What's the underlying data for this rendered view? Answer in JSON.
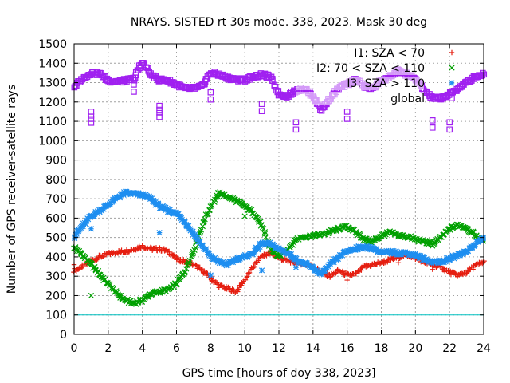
{
  "chart_data": {
    "type": "scatter",
    "title": "NRAYS. SISTED rt 30s mode. 338, 2023. Mask 30 deg",
    "xlabel": "GPS time [hours of doy 338, 2023]",
    "ylabel": "Number of GPS receiver-satellite rays",
    "xlim": [
      0,
      24
    ],
    "ylim": [
      0,
      1500
    ],
    "x_ticks": [
      "0",
      "2",
      "4",
      "6",
      "8",
      "10",
      "12",
      "14",
      "16",
      "18",
      "20",
      "22",
      "24"
    ],
    "y_ticks": [
      "0",
      "100",
      "200",
      "300",
      "400",
      "500",
      "600",
      "700",
      "800",
      "900",
      "1000",
      "1100",
      "1200",
      "1300",
      "1400",
      "1500"
    ],
    "grid": true,
    "legend_position": "top-right",
    "threshold_line": {
      "y": 100,
      "color": "#00c0c0"
    },
    "series": [
      {
        "name": "I1: SZA < 70",
        "marker": "+",
        "color": "#e51e10",
        "points": [
          [
            0,
            330
          ],
          [
            0.5,
            350
          ],
          [
            1,
            380
          ],
          [
            1.5,
            400
          ],
          [
            2,
            415
          ],
          [
            2.5,
            425
          ],
          [
            3,
            430
          ],
          [
            3.5,
            440
          ],
          [
            4,
            455
          ],
          [
            4.5,
            440
          ],
          [
            5,
            440
          ],
          [
            5.5,
            430
          ],
          [
            6,
            390
          ],
          [
            6.5,
            375
          ],
          [
            7,
            360
          ],
          [
            7.5,
            330
          ],
          [
            8,
            290
          ],
          [
            8.5,
            250
          ],
          [
            9,
            235
          ],
          [
            9.5,
            220
          ],
          [
            10,
            280
          ],
          [
            10.5,
            350
          ],
          [
            11,
            405
          ],
          [
            11.5,
            420
          ],
          [
            12,
            395
          ],
          [
            12.5,
            380
          ],
          [
            13,
            370
          ],
          [
            13.5,
            365
          ],
          [
            14,
            350
          ],
          [
            14.5,
            320
          ],
          [
            15,
            300
          ],
          [
            15.5,
            330
          ],
          [
            16,
            305
          ],
          [
            16.5,
            310
          ],
          [
            17,
            350
          ],
          [
            17.5,
            360
          ],
          [
            18,
            370
          ],
          [
            18.5,
            385
          ],
          [
            19,
            400
          ],
          [
            19.5,
            410
          ],
          [
            20,
            395
          ],
          [
            20.5,
            375
          ],
          [
            21,
            360
          ],
          [
            21.5,
            345
          ],
          [
            22,
            320
          ],
          [
            22.5,
            305
          ],
          [
            23,
            320
          ],
          [
            23.5,
            355
          ],
          [
            24,
            375
          ]
        ]
      },
      {
        "name": "I2: 70 < SZA < 110",
        "marker": "x",
        "color": "#00a000",
        "points": [
          [
            0,
            450
          ],
          [
            0.5,
            410
          ],
          [
            1,
            360
          ],
          [
            1.5,
            310
          ],
          [
            2,
            260
          ],
          [
            2.5,
            210
          ],
          [
            3,
            175
          ],
          [
            3.5,
            160
          ],
          [
            4,
            175
          ],
          [
            4.5,
            210
          ],
          [
            5,
            220
          ],
          [
            5.5,
            230
          ],
          [
            6,
            260
          ],
          [
            6.5,
            330
          ],
          [
            7,
            430
          ],
          [
            7.5,
            560
          ],
          [
            8,
            660
          ],
          [
            8.5,
            730
          ],
          [
            9,
            710
          ],
          [
            9.5,
            690
          ],
          [
            10,
            660
          ],
          [
            10.5,
            630
          ],
          [
            11,
            560
          ],
          [
            11.5,
            440
          ],
          [
            12,
            400
          ],
          [
            12.5,
            440
          ],
          [
            13,
            490
          ],
          [
            13.5,
            505
          ],
          [
            14,
            510
          ],
          [
            14.5,
            515
          ],
          [
            15,
            530
          ],
          [
            15.5,
            545
          ],
          [
            16,
            555
          ],
          [
            16.5,
            530
          ],
          [
            17,
            490
          ],
          [
            17.5,
            480
          ],
          [
            18,
            510
          ],
          [
            18.5,
            525
          ],
          [
            19,
            510
          ],
          [
            19.5,
            505
          ],
          [
            20,
            490
          ],
          [
            20.5,
            480
          ],
          [
            21,
            465
          ],
          [
            21.5,
            500
          ],
          [
            22,
            545
          ],
          [
            22.5,
            565
          ],
          [
            23,
            550
          ],
          [
            23.5,
            510
          ],
          [
            24,
            480
          ]
        ]
      },
      {
        "name": "I3: SZA > 110",
        "marker": "*",
        "color": "#1e8ef0",
        "points": [
          [
            0,
            505
          ],
          [
            0.5,
            560
          ],
          [
            1,
            610
          ],
          [
            1.5,
            640
          ],
          [
            2,
            670
          ],
          [
            2.5,
            705
          ],
          [
            3,
            730
          ],
          [
            3.5,
            725
          ],
          [
            4,
            720
          ],
          [
            4.5,
            700
          ],
          [
            5,
            660
          ],
          [
            5.5,
            640
          ],
          [
            6,
            625
          ],
          [
            6.5,
            580
          ],
          [
            7,
            520
          ],
          [
            7.5,
            460
          ],
          [
            8,
            400
          ],
          [
            8.5,
            375
          ],
          [
            9,
            360
          ],
          [
            9.5,
            390
          ],
          [
            10,
            400
          ],
          [
            10.5,
            420
          ],
          [
            11,
            470
          ],
          [
            11.5,
            465
          ],
          [
            12,
            440
          ],
          [
            12.5,
            420
          ],
          [
            13,
            385
          ],
          [
            13.5,
            365
          ],
          [
            14,
            340
          ],
          [
            14.5,
            310
          ],
          [
            15,
            360
          ],
          [
            15.5,
            400
          ],
          [
            16,
            430
          ],
          [
            16.5,
            445
          ],
          [
            17,
            450
          ],
          [
            17.5,
            445
          ],
          [
            18,
            420
          ],
          [
            18.5,
            425
          ],
          [
            19,
            420
          ],
          [
            19.5,
            420
          ],
          [
            20,
            410
          ],
          [
            20.5,
            390
          ],
          [
            21,
            375
          ],
          [
            21.5,
            375
          ],
          [
            22,
            390
          ],
          [
            22.5,
            410
          ],
          [
            23,
            430
          ],
          [
            23.5,
            465
          ],
          [
            24,
            500
          ]
        ]
      },
      {
        "name": "global",
        "marker": "square",
        "color": "#a020f0",
        "points": [
          [
            0,
            1280
          ],
          [
            0.5,
            1320
          ],
          [
            1,
            1350
          ],
          [
            1.5,
            1345
          ],
          [
            2,
            1310
          ],
          [
            2.5,
            1305
          ],
          [
            3,
            1310
          ],
          [
            3.5,
            1320
          ],
          [
            4,
            1410
          ],
          [
            4.5,
            1340
          ],
          [
            5,
            1315
          ],
          [
            5.5,
            1310
          ],
          [
            6,
            1290
          ],
          [
            6.5,
            1270
          ],
          [
            7,
            1270
          ],
          [
            7.5,
            1280
          ],
          [
            8,
            1350
          ],
          [
            8.5,
            1340
          ],
          [
            9,
            1325
          ],
          [
            9.5,
            1315
          ],
          [
            10,
            1315
          ],
          [
            10.5,
            1330
          ],
          [
            11,
            1340
          ],
          [
            11.5,
            1330
          ],
          [
            12,
            1240
          ],
          [
            12.5,
            1230
          ],
          [
            13,
            1260
          ],
          [
            13.5,
            1270
          ],
          [
            14,
            1230
          ],
          [
            14.5,
            1160
          ],
          [
            15,
            1220
          ],
          [
            15.5,
            1270
          ],
          [
            16,
            1290
          ],
          [
            16.5,
            1320
          ],
          [
            17,
            1280
          ],
          [
            17.5,
            1270
          ],
          [
            18,
            1310
          ],
          [
            18.5,
            1330
          ],
          [
            19,
            1360
          ],
          [
            19.5,
            1340
          ],
          [
            20,
            1320
          ],
          [
            20.5,
            1260
          ],
          [
            21,
            1220
          ],
          [
            21.5,
            1220
          ],
          [
            22,
            1240
          ],
          [
            22.5,
            1270
          ],
          [
            23,
            1300
          ],
          [
            23.5,
            1330
          ],
          [
            24,
            1345
          ]
        ]
      }
    ],
    "outliers": [
      {
        "series": 3,
        "x": 1,
        "y": 1150
      },
      {
        "series": 3,
        "x": 1,
        "y": 1130
      },
      {
        "series": 3,
        "x": 5,
        "y": 1180
      },
      {
        "series": 3,
        "x": 5,
        "y": 1160
      },
      {
        "series": 3,
        "x": 3.5,
        "y": 1290
      },
      {
        "series": 3,
        "x": 8,
        "y": 1250
      },
      {
        "series": 3,
        "x": 11,
        "y": 1190
      },
      {
        "series": 3,
        "x": 13,
        "y": 1095
      },
      {
        "series": 3,
        "x": 16,
        "y": 1150
      },
      {
        "series": 3,
        "x": 21,
        "y": 1105
      },
      {
        "series": 3,
        "x": 22,
        "y": 1095
      },
      {
        "series": 2,
        "x": 1,
        "y": 545
      },
      {
        "series": 2,
        "x": 5,
        "y": 525
      },
      {
        "series": 2,
        "x": 8,
        "y": 305
      },
      {
        "series": 2,
        "x": 11,
        "y": 330
      },
      {
        "series": 2,
        "x": 13,
        "y": 345
      },
      {
        "series": 1,
        "x": 1,
        "y": 200
      },
      {
        "series": 1,
        "x": 10,
        "y": 610
      },
      {
        "series": 0,
        "x": 0,
        "y": 360
      },
      {
        "series": 0,
        "x": 16,
        "y": 280
      },
      {
        "series": 0,
        "x": 19,
        "y": 370
      },
      {
        "series": 0,
        "x": 21,
        "y": 335
      }
    ]
  }
}
